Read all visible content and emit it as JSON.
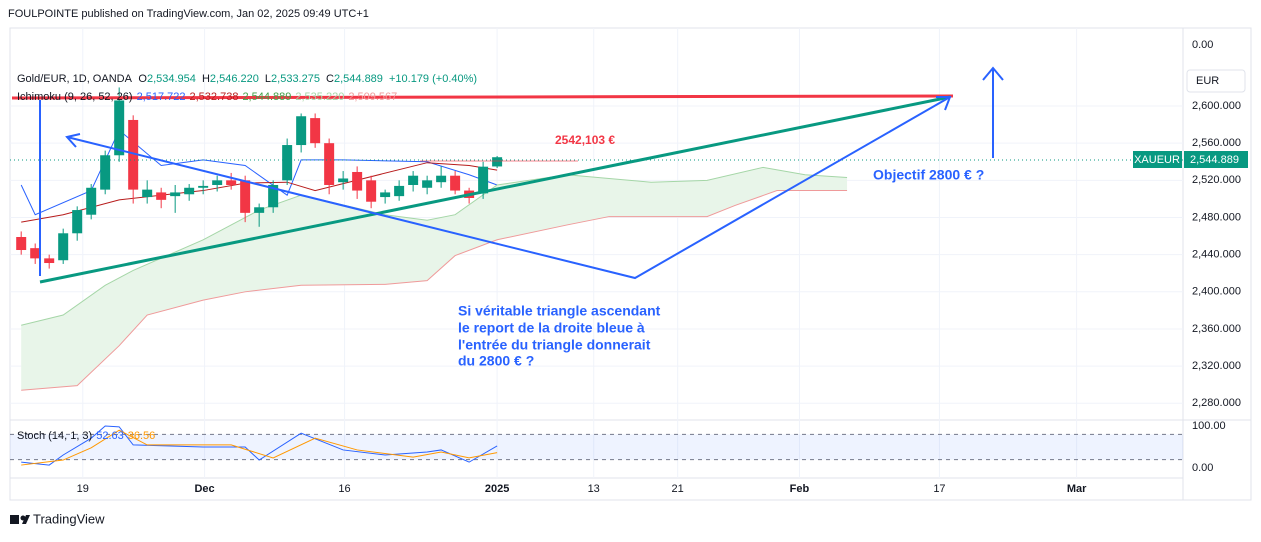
{
  "header": {
    "publisher": "FOULPOINTE published on TradingView.com, Jan 02, 2025 09:49 UTC+1",
    "brand": "TradingView"
  },
  "chart_data": [
    {
      "type": "candlestick",
      "symbol": "Gold/EUR, 1D, OANDA",
      "legend_fields": [
        "O",
        "H",
        "L",
        "C"
      ],
      "last_labels": [
        "2,534.954",
        "2,546.220",
        "2,533.275",
        "2,544.889"
      ],
      "change": "+10.179 (+0.40%)",
      "currency": "EUR",
      "ticker": "XAUEUR",
      "price_label": "2,544.889",
      "top_label": "0.00",
      "up_color": "#089981",
      "down_color": "#f23645",
      "open": [
        2459,
        2447,
        2436,
        2434,
        2463,
        2483,
        2510,
        2547,
        2585,
        2502,
        2507,
        2503,
        2505,
        2512,
        2515,
        2520,
        2520,
        2485,
        2491,
        2520,
        2558,
        2587,
        2560,
        2518,
        2529,
        2520,
        2502,
        2503,
        2515,
        2512,
        2518,
        2525,
        2509,
        2506,
        2534.954
      ],
      "high": [
        2465,
        2452,
        2440,
        2468,
        2492,
        2516,
        2552,
        2620,
        2590,
        2520,
        2512,
        2515,
        2516,
        2520,
        2525,
        2528,
        2525,
        2495,
        2520,
        2565,
        2592,
        2592,
        2565,
        2530,
        2535,
        2525,
        2510,
        2520,
        2530,
        2525,
        2535,
        2530,
        2512,
        2540,
        2546.22
      ],
      "low": [
        2440,
        2430,
        2425,
        2430,
        2455,
        2478,
        2505,
        2540,
        2495,
        2495,
        2490,
        2485,
        2498,
        2505,
        2508,
        2510,
        2475,
        2470,
        2485,
        2515,
        2550,
        2555,
        2505,
        2510,
        2500,
        2490,
        2495,
        2498,
        2508,
        2505,
        2512,
        2505,
        2495,
        2500,
        2533.275
      ],
      "close": [
        2445,
        2436,
        2431,
        2463,
        2488,
        2512,
        2547,
        2606,
        2510,
        2510,
        2499,
        2507,
        2512,
        2514,
        2520,
        2515,
        2485,
        2491,
        2515,
        2558,
        2589,
        2560,
        2515,
        2522,
        2509,
        2497,
        2507,
        2514,
        2525,
        2520,
        2525,
        2509,
        2501,
        2534.71,
        2544.889
      ],
      "xlim": [
        -0.8,
        83
      ],
      "ylim": [
        2262,
        2684
      ],
      "yticks": [
        {
          "value": 2600,
          "label": "2,600.000"
        },
        {
          "value": 2560,
          "label": "2,560.000"
        },
        {
          "value": 2520,
          "label": "2,520.000"
        },
        {
          "value": 2480,
          "label": "2,480.000"
        },
        {
          "value": 2440,
          "label": "2,440.000"
        },
        {
          "value": 2400,
          "label": "2,400.000"
        },
        {
          "value": 2360,
          "label": "2,360.000"
        },
        {
          "value": 2320,
          "label": "2,320.000"
        },
        {
          "value": 2280,
          "label": "2,280.000"
        }
      ],
      "xticks": [
        {
          "value": 4.4,
          "label": "19"
        },
        {
          "value": 13.1,
          "label": "Dec"
        },
        {
          "value": 23.1,
          "label": "16"
        },
        {
          "value": 34,
          "label": "2025"
        },
        {
          "value": 40.9,
          "label": "13"
        },
        {
          "value": 46.9,
          "label": "21"
        },
        {
          "value": 55.6,
          "label": "Feb"
        },
        {
          "value": 65.6,
          "label": "17"
        },
        {
          "value": 75.4,
          "label": "Mar"
        }
      ],
      "ichimoku": {
        "name": "Ichimoku (9, 26, 52, 26)",
        "value_labels": [
          "2,517.722",
          "2,532.738",
          "2,544.889",
          "2,535.220",
          "2,509.567"
        ],
        "label_colors": [
          "#2962ff",
          "#b71c1c",
          "#43a047",
          "#a5d6a7",
          "#ef9a9a"
        ],
        "cloud_color": "#e8f5e9",
        "lines": [
          {
            "color": "#2962ff",
            "x": [
              0,
              1,
              5,
              7,
              10,
              13,
              16,
              19,
              20,
              23,
              29,
              32,
              34
            ],
            "values": [
              2515,
              2483,
              2509,
              2574,
              2536,
              2542,
              2536,
              2504,
              2542,
              2542,
              2540,
              2526,
              2515
            ]
          },
          {
            "color": "#b71c1c",
            "x": [
              0,
              3,
              7,
              13,
              16,
              19,
              21,
              29,
              32,
              34
            ],
            "values": [
              2475,
              2483,
              2499,
              2509,
              2517,
              2518,
              2509,
              2539,
              2536,
              2531
            ]
          },
          {
            "color": "#a5d6a7",
            "x": [
              0,
              3,
              6,
              8,
              13,
              17,
              20,
              26,
              29,
              31,
              34,
              39,
              42,
              45,
              49,
              53,
              56,
              59
            ],
            "values": [
              2364,
              2375,
              2407,
              2423,
              2456,
              2488,
              2504,
              2483,
              2477,
              2483,
              2515,
              2526,
              2522,
              2518,
              2520,
              2534,
              2526,
              2523
            ]
          },
          {
            "color": "#ef9a9a",
            "x": [
              0,
              4,
              7,
              9,
              13,
              16,
              20,
              26,
              29,
              31,
              34,
              39,
              42,
              49,
              51,
              54,
              59
            ],
            "values": [
              2294,
              2299,
              2342,
              2375,
              2391,
              2400,
              2407,
              2408,
              2412,
              2439,
              2456,
              2472,
              2481,
              2481,
              2493,
              2509,
              2509
            ]
          }
        ]
      },
      "annotations": {
        "level": "2542,103 €",
        "target": "Objectif 2800 € ?",
        "note": [
          "Si véritable triangle ascendant",
          "le report de la droite bleue à",
          "l'entrée du triangle donnerait",
          "du 2800 € ?"
        ]
      }
    },
    {
      "type": "line",
      "title": "Stoch (14, 1, 3)",
      "value_labels": [
        "52.63",
        "36.56"
      ],
      "series": [
        {
          "color": "#2962ff",
          "x": [
            0,
            2,
            3,
            5,
            6,
            7,
            8,
            13,
            16,
            17,
            20,
            23,
            26,
            29,
            30,
            32,
            34
          ],
          "values": [
            14,
            7,
            31,
            71,
            100,
            98,
            55,
            50,
            50,
            19,
            83,
            43,
            31,
            38,
            43,
            14,
            52.63
          ]
        },
        {
          "color": "#ff9800",
          "x": [
            0,
            3,
            5,
            7,
            9,
            15,
            18,
            21,
            24,
            28,
            30,
            32,
            34
          ],
          "values": [
            7,
            19,
            48,
            90,
            55,
            55,
            24,
            71,
            43,
            26,
            38,
            24,
            36.56
          ]
        }
      ],
      "ylim": [
        -23.8,
        114.3
      ],
      "yticks": [
        {
          "value": 100,
          "label": "100.00"
        },
        {
          "value": 0,
          "label": "0.00"
        }
      ],
      "bands": [
        80,
        20
      ]
    }
  ]
}
